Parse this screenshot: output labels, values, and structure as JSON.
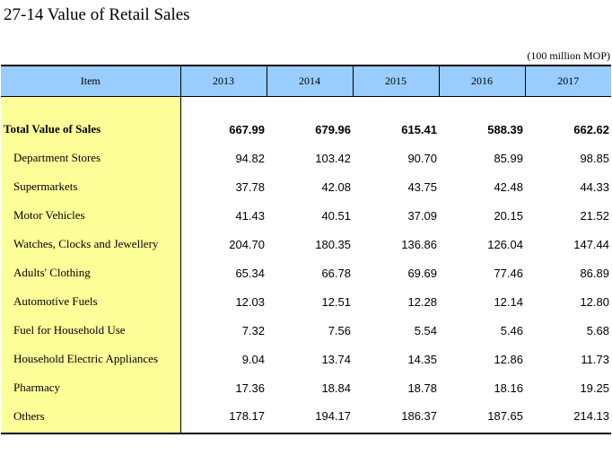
{
  "title": "27-14  Value of Retail Sales",
  "unit": "(100 million MOP)",
  "table": {
    "item_header": "Item",
    "years": [
      "2013",
      "2014",
      "2015",
      "2016",
      "2017"
    ],
    "total": {
      "label": "Total Value of Sales",
      "values": [
        "667.99",
        "679.96",
        "615.41",
        "588.39",
        "662.62"
      ]
    },
    "rows": [
      {
        "label": "Department Stores",
        "values": [
          "94.82",
          "103.42",
          "90.70",
          "85.99",
          "98.85"
        ]
      },
      {
        "label": "Supermarkets",
        "values": [
          "37.78",
          "42.08",
          "43.75",
          "42.48",
          "44.33"
        ]
      },
      {
        "label": "Motor Vehicles",
        "values": [
          "41.43",
          "40.51",
          "37.09",
          "20.15",
          "21.52"
        ]
      },
      {
        "label": "Watches, Clocks and Jewellery",
        "values": [
          "204.70",
          "180.35",
          "136.86",
          "126.04",
          "147.44"
        ]
      },
      {
        "label": "Adults' Clothing",
        "values": [
          "65.34",
          "66.78",
          "69.69",
          "77.46",
          "86.89"
        ]
      },
      {
        "label": "Automotive Fuels",
        "values": [
          "12.03",
          "12.51",
          "12.28",
          "12.14",
          "12.80"
        ]
      },
      {
        "label": "Fuel for Household Use",
        "values": [
          "7.32",
          "7.56",
          "5.54",
          "5.46",
          "5.68"
        ]
      },
      {
        "label": "Household Electric Appliances",
        "values": [
          "9.04",
          "13.74",
          "14.35",
          "12.86",
          "11.73"
        ]
      },
      {
        "label": "Pharmacy",
        "values": [
          "17.36",
          "18.84",
          "18.78",
          "18.16",
          "19.25"
        ]
      },
      {
        "label": "Others",
        "values": [
          "178.17",
          "194.17",
          "186.37",
          "187.65",
          "214.13"
        ]
      }
    ]
  },
  "colors": {
    "header_bg": "#99ccff",
    "label_bg": "#ffff99"
  }
}
